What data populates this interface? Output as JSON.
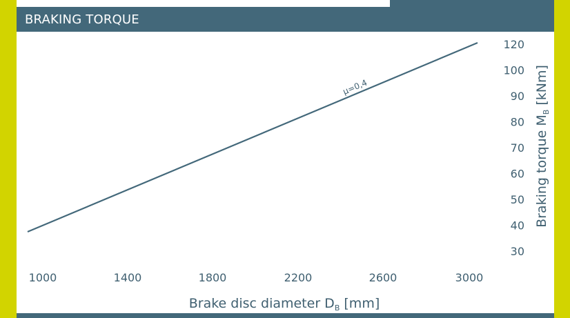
{
  "header": {
    "title": "BRAKING TORQUE"
  },
  "colors": {
    "accent": "#d2d400",
    "header": "#43687a",
    "line": "#43687a",
    "text": "#3f5f70"
  },
  "chart_data": {
    "type": "line",
    "title": "BRAKING TORQUE",
    "xlabel": "Brake disc diameter D",
    "xlabel_sub": "B",
    "xlabel_unit": " [mm]",
    "ylabel": "Braking torque M",
    "ylabel_sub": "B",
    "ylabel_unit": " [kNm]",
    "xlim": [
      1000,
      3000
    ],
    "ylim": [
      30,
      120
    ],
    "x_ticks": [
      1000,
      1400,
      1800,
      2200,
      2600,
      3000
    ],
    "y_ticks": [
      30,
      40,
      50,
      60,
      70,
      80,
      90,
      100,
      120
    ],
    "series": [
      {
        "name": "μ=0,4",
        "x": [
          1000,
          3000
        ],
        "y": [
          37,
          120
        ]
      }
    ],
    "grid": false,
    "legend": "none"
  }
}
